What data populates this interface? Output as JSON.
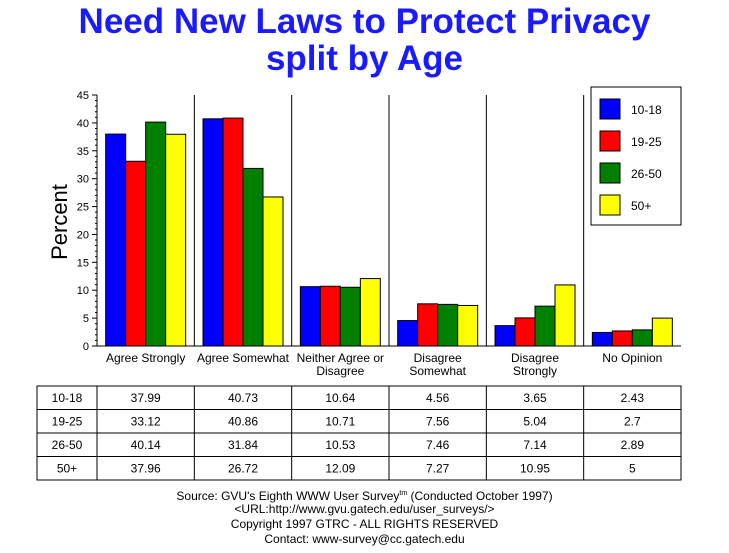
{
  "title_line1": "Need New Laws to Protect Privacy",
  "title_line2": "split by Age",
  "footer": {
    "source_prefix": "Source: GVU's Eighth WWW User Survey",
    "source_sup": "tm",
    "source_suffix": " (Conducted October 1997)",
    "url": "<URL:http://www.gvu.gatech.edu/user_surveys/>",
    "copyright": "Copyright 1997 GTRC - ALL RIGHTS RESERVED",
    "contact": "Contact: www-survey@cc.gatech.edu"
  },
  "chart_data": {
    "type": "bar",
    "title": "Need New Laws to Protect Privacy split by Age",
    "ylabel": "Percent",
    "xlabel": "",
    "ylim": [
      0,
      45
    ],
    "yticks": [
      0,
      5,
      10,
      15,
      20,
      25,
      30,
      35,
      40,
      45
    ],
    "categories": [
      [
        "Agree Strongly"
      ],
      [
        "Agree Somewhat"
      ],
      [
        "Neither Agree or",
        "Disagree"
      ],
      [
        "Disagree",
        "Somewhat"
      ],
      [
        "Disagree",
        "Strongly"
      ],
      [
        "No Opinion"
      ]
    ],
    "legend_position": "top-right",
    "grid": false,
    "series": [
      {
        "name": "10-18",
        "color": "#0000ff",
        "values": [
          37.99,
          40.73,
          10.64,
          4.56,
          3.65,
          2.43
        ],
        "labels": [
          "37.99",
          "40.73",
          "10.64",
          "4.56",
          "3.65",
          "2.43"
        ]
      },
      {
        "name": "19-25",
        "color": "#ff0000",
        "values": [
          33.12,
          40.86,
          10.71,
          7.56,
          5.04,
          2.7
        ],
        "labels": [
          "33.12",
          "40.86",
          "10.71",
          "7.56",
          "5.04",
          "2.7"
        ]
      },
      {
        "name": "26-50",
        "color": "#008000",
        "values": [
          40.14,
          31.84,
          10.53,
          7.46,
          7.14,
          2.89
        ],
        "labels": [
          "40.14",
          "31.84",
          "10.53",
          "7.46",
          "7.14",
          "2.89"
        ]
      },
      {
        "name": "50+",
        "color": "#ffff00",
        "values": [
          37.96,
          26.72,
          12.09,
          7.27,
          10.95,
          5
        ],
        "labels": [
          "37.96",
          "26.72",
          "12.09",
          "7.27",
          "10.95",
          "5"
        ]
      }
    ]
  }
}
